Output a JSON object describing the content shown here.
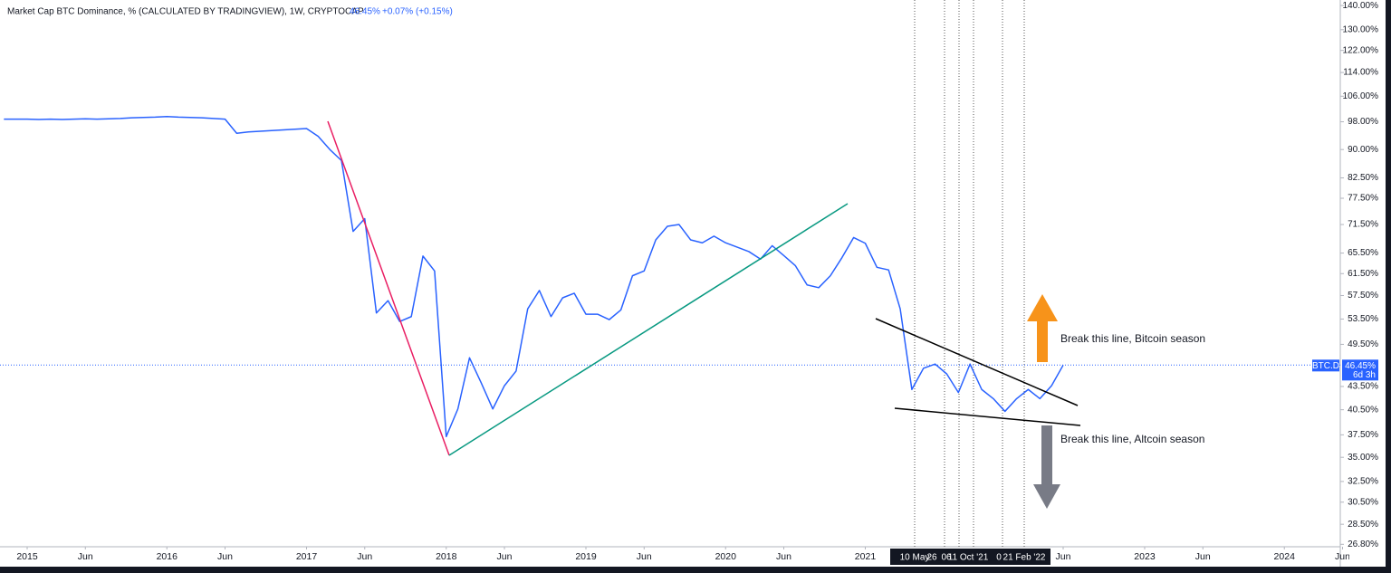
{
  "chart_data": {
    "type": "line",
    "title": "Market Cap BTC Dominance, % (CALCULATED BY TRADINGVIEW), 1W, CRYPTOCAP",
    "price_label": "46.45%",
    "change_label": "+0.07% (+0.15%)",
    "symbol": "BTC.D",
    "countdown": "6d 3h",
    "annotations": [
      "Break this line, Bitcoin season",
      "Break this line, Altcoin season"
    ],
    "marker_labels": [
      "10 May",
      "26",
      "06",
      "11 Oct '21",
      "0",
      "21 Feb '22"
    ],
    "log_scale": true,
    "grid": false,
    "x": [
      "2014-11",
      "2014-12",
      "2015-01",
      "2015-02",
      "2015-03",
      "2015-04",
      "2015-05",
      "2015-06",
      "2015-07",
      "2015-08",
      "2015-09",
      "2015-10",
      "2015-11",
      "2015-12",
      "2016-01",
      "2016-02",
      "2016-03",
      "2016-04",
      "2016-05",
      "2016-06",
      "2016-07",
      "2016-08",
      "2016-09",
      "2016-10",
      "2016-11",
      "2016-12",
      "2017-01",
      "2017-02",
      "2017-03",
      "2017-04",
      "2017-05",
      "2017-06",
      "2017-07",
      "2017-08",
      "2017-09",
      "2017-10",
      "2017-11",
      "2017-12",
      "2018-01",
      "2018-02",
      "2018-03",
      "2018-04",
      "2018-05",
      "2018-06",
      "2018-07",
      "2018-08",
      "2018-09",
      "2018-10",
      "2018-11",
      "2018-12",
      "2019-01",
      "2019-02",
      "2019-03",
      "2019-04",
      "2019-05",
      "2019-06",
      "2019-07",
      "2019-08",
      "2019-09",
      "2019-10",
      "2019-11",
      "2019-12",
      "2020-01",
      "2020-02",
      "2020-03",
      "2020-04",
      "2020-05",
      "2020-06",
      "2020-07",
      "2020-08",
      "2020-09",
      "2020-10",
      "2020-11",
      "2020-12",
      "2021-01",
      "2021-02",
      "2021-03",
      "2021-04",
      "2021-05",
      "2021-06",
      "2021-07",
      "2021-08",
      "2021-09",
      "2021-10",
      "2021-11",
      "2021-12",
      "2022-01",
      "2022-02",
      "2022-03",
      "2022-04",
      "2022-05",
      "2022-06"
    ],
    "series": [
      {
        "name": "BTC.D",
        "color": "#2962ff",
        "values": [
          98.8,
          98.8,
          98.8,
          98.7,
          98.8,
          98.7,
          98.8,
          98.9,
          98.8,
          98.9,
          99.0,
          99.2,
          99.3,
          99.4,
          99.6,
          99.4,
          99.3,
          99.2,
          99.0,
          98.8,
          94.6,
          95.0,
          95.2,
          95.4,
          95.6,
          95.8,
          96.0,
          93.7,
          90.0,
          87.0,
          70.0,
          72.8,
          54.5,
          56.6,
          53.1,
          53.9,
          64.9,
          62.0,
          37.3,
          40.6,
          47.5,
          44.0,
          40.6,
          43.6,
          45.6,
          55.2,
          58.4,
          53.9,
          57.1,
          57.9,
          54.3,
          54.3,
          53.4,
          55.0,
          61.1,
          62.0,
          68.2,
          71.1,
          71.5,
          68.2,
          67.6,
          69.0,
          67.6,
          66.7,
          65.8,
          64.3,
          67.0,
          65.0,
          63.0,
          59.4,
          58.9,
          61.1,
          64.6,
          68.7,
          67.5,
          62.7,
          62.2,
          55.2,
          43.1,
          46.0,
          46.6,
          45.2,
          42.7,
          46.6,
          43.1,
          41.9,
          40.3,
          41.9,
          43.1,
          41.9,
          43.6,
          46.45
        ]
      }
    ],
    "xlim": [
      "2014-11",
      "2024-06"
    ],
    "xticks": [
      {
        "value": "2015-01",
        "label": "2015"
      },
      {
        "value": "2015-06",
        "label": "Jun"
      },
      {
        "value": "2016-01",
        "label": "2016"
      },
      {
        "value": "2016-06",
        "label": "Jun"
      },
      {
        "value": "2017-01",
        "label": "2017"
      },
      {
        "value": "2017-06",
        "label": "Jun"
      },
      {
        "value": "2018-01",
        "label": "2018"
      },
      {
        "value": "2018-06",
        "label": "Jun"
      },
      {
        "value": "2019-01",
        "label": "2019"
      },
      {
        "value": "2019-06",
        "label": "Jun"
      },
      {
        "value": "2020-01",
        "label": "2020"
      },
      {
        "value": "2020-06",
        "label": "Jun"
      },
      {
        "value": "2021-01",
        "label": "2021"
      },
      {
        "value": "2022-06",
        "label": "Jun"
      },
      {
        "value": "2023-01",
        "label": "2023"
      },
      {
        "value": "2023-06",
        "label": "Jun"
      },
      {
        "value": "2024-01",
        "label": "2024"
      },
      {
        "value": "2024-06",
        "label": "Jun"
      }
    ],
    "ylim": [
      26.6,
      142.4
    ],
    "yticks": [
      {
        "value": 140,
        "label": "140.00%"
      },
      {
        "value": 130,
        "label": "130.00%"
      },
      {
        "value": 122,
        "label": "122.00%"
      },
      {
        "value": 114,
        "label": "114.00%"
      },
      {
        "value": 106,
        "label": "106.00%"
      },
      {
        "value": 98,
        "label": "98.00%"
      },
      {
        "value": 90,
        "label": "90.00%"
      },
      {
        "value": 82.5,
        "label": "82.50%"
      },
      {
        "value": 77.5,
        "label": "77.50%"
      },
      {
        "value": 71.5,
        "label": "71.50%"
      },
      {
        "value": 65.5,
        "label": "65.50%"
      },
      {
        "value": 61.5,
        "label": "61.50%"
      },
      {
        "value": 57.5,
        "label": "57.50%"
      },
      {
        "value": 53.5,
        "label": "53.50%"
      },
      {
        "value": 49.5,
        "label": "49.50%"
      },
      {
        "value": 43.5,
        "label": "43.50%"
      },
      {
        "value": 40.5,
        "label": "40.50%"
      },
      {
        "value": 37.5,
        "label": "37.50%"
      },
      {
        "value": 35,
        "label": "35.00%"
      },
      {
        "value": 32.5,
        "label": "32.50%"
      },
      {
        "value": 30.5,
        "label": "30.50%"
      },
      {
        "value": 28.5,
        "label": "28.50%"
      },
      {
        "value": 26.8,
        "label": "26.80%"
      }
    ]
  }
}
